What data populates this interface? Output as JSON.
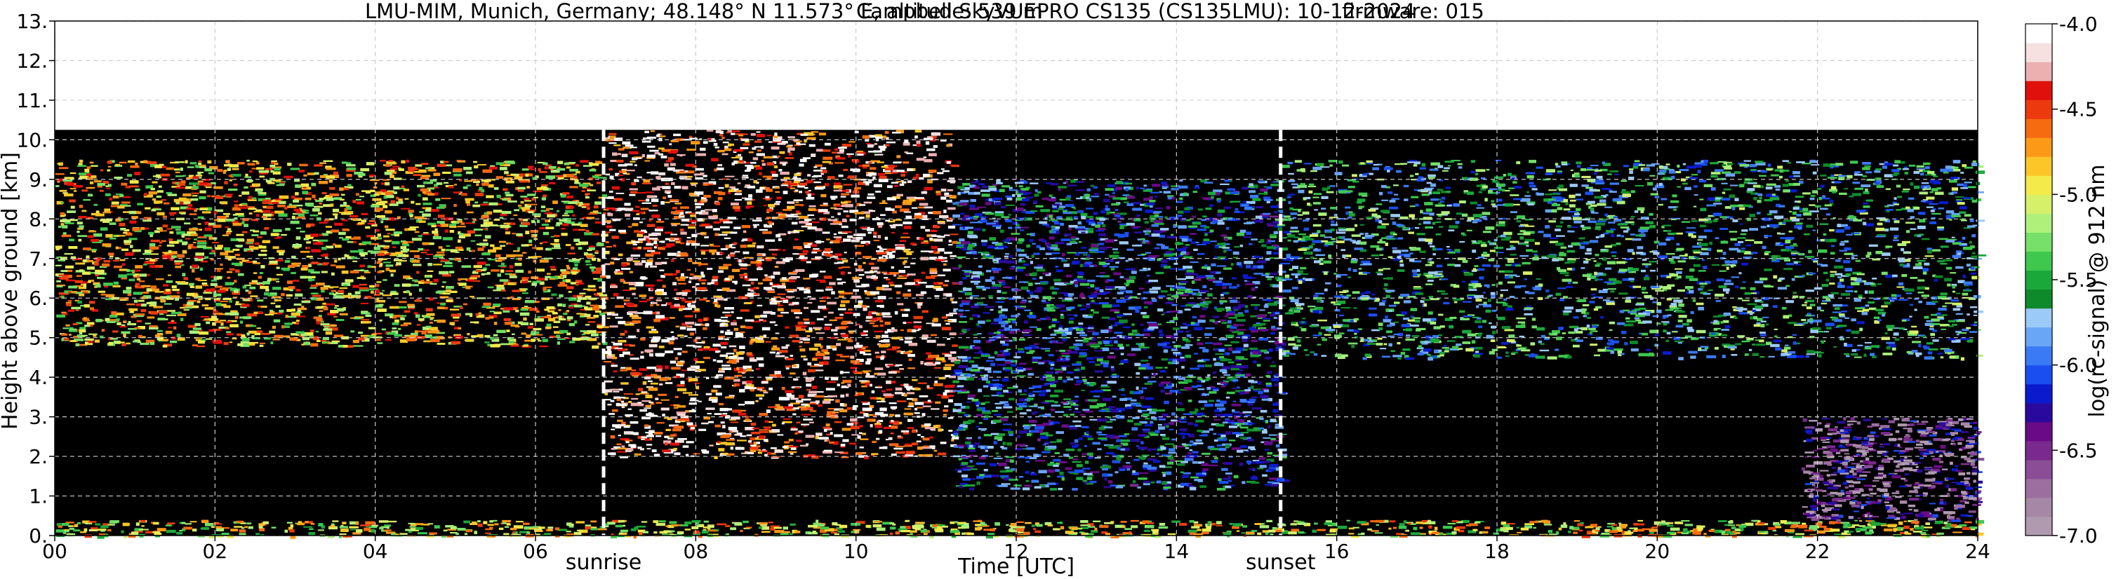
{
  "chart_data": {
    "type": "heatmap",
    "title_location": "LMU-MIM, Munich, Germany; 48.148° N 11.573° E, altitude: 539 m",
    "title_instrument": "Campbell SkyVUEPRO CS135 (CS135LMU): 10-12-2024",
    "title_firmware": "firmware: 015",
    "xlabel": "Time [UTC]",
    "ylabel": "Height above ground [km]",
    "xlim": [
      0,
      24
    ],
    "ylim": [
      0,
      13
    ],
    "x_ticks": [
      0,
      2,
      4,
      6,
      8,
      10,
      12,
      14,
      16,
      18,
      20,
      22,
      24
    ],
    "x_tick_labels": [
      "00",
      "02",
      "04",
      "06",
      "08",
      "10",
      "12",
      "14",
      "16",
      "18",
      "20",
      "22",
      "24"
    ],
    "y_ticks": [
      0,
      1,
      2,
      3,
      4,
      5,
      6,
      7,
      8,
      9,
      10,
      11,
      12,
      13
    ],
    "y_tick_labels": [
      "0.",
      "1.",
      "2.",
      "3.",
      "4.",
      "5.",
      "6.",
      "7.",
      "8.",
      "9.",
      "10.",
      "11.",
      "12.",
      "13."
    ],
    "grid": true,
    "measurement_top_km": 10.25,
    "sunrise_utc": 6.85,
    "sunset_utc": 15.3,
    "sunrise_label": "sunrise",
    "sunset_label": "sunset",
    "colorbar": {
      "label": "log(rc-signal) @ 912 nm",
      "range": [
        -7.0,
        -4.0
      ],
      "ticks": [
        -7.0,
        -6.5,
        -6.0,
        -5.5,
        -5.0,
        -4.5,
        -4.0
      ],
      "tick_labels": [
        "-7.0",
        "-6.5",
        "-6.0",
        "-5.5",
        "-5.0",
        "-4.5",
        "-4.0"
      ],
      "colors": [
        "#b09ab0",
        "#a688a6",
        "#9c6ea0",
        "#8a4d96",
        "#7a2a8e",
        "#6a0a86",
        "#2a0a9e",
        "#0a1acc",
        "#1a4ef0",
        "#3a7af4",
        "#6aa6f6",
        "#9ccaf8",
        "#0e8a2a",
        "#1aa83a",
        "#3ec84e",
        "#76e06a",
        "#aef07a",
        "#d6f06a",
        "#f4ea4a",
        "#fcc628",
        "#fc9a18",
        "#f66a10",
        "#ec3a0e",
        "#e0100c",
        "#ecb0b0",
        "#f6e0e0",
        "#ffffff"
      ]
    },
    "cloud_layers": [
      {
        "name": "upper-layer-night-1",
        "t": [
          0,
          6.85
        ],
        "h": [
          4.8,
          9.5
        ],
        "level": -4.9
      },
      {
        "name": "upper-layer-morning",
        "t": [
          6.85,
          11.2
        ],
        "h": [
          2.0,
          10.25
        ],
        "level": -4.3
      },
      {
        "name": "upper-layer-midday",
        "t": [
          11.2,
          15.3
        ],
        "h": [
          1.2,
          9.0
        ],
        "level": -5.9
      },
      {
        "name": "upper-layer-evening",
        "t": [
          15.3,
          24
        ],
        "h": [
          4.5,
          9.5
        ],
        "level": -5.6
      },
      {
        "name": "boundary-layer",
        "t": [
          0,
          24
        ],
        "h": [
          0.0,
          0.4
        ],
        "level": -5.0
      },
      {
        "name": "night-precip-fallstreaks",
        "t": [
          21.8,
          24
        ],
        "h": [
          0.4,
          3.0
        ],
        "level": -6.6
      }
    ]
  }
}
